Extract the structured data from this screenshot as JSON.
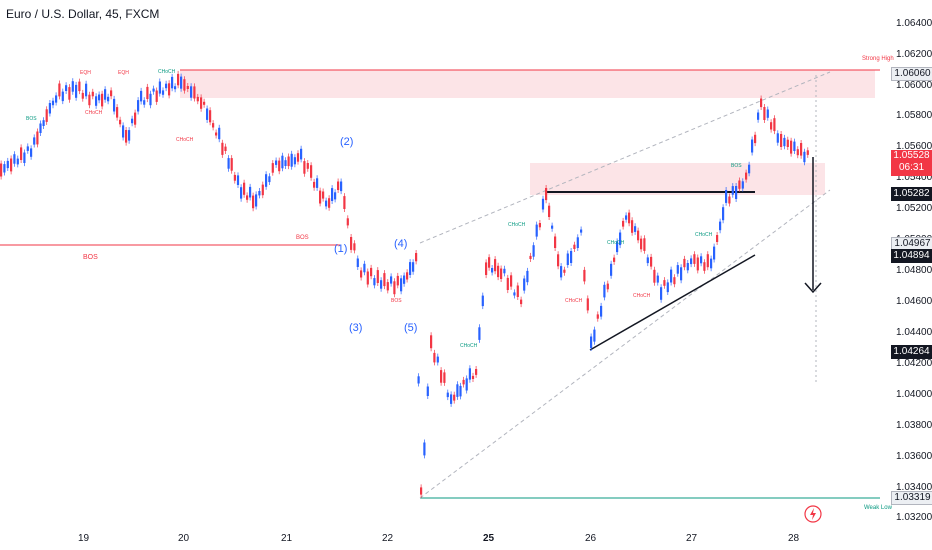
{
  "header": {
    "title": "Euro / U.S. Dollar, 45, FXCM"
  },
  "price_axis": {
    "labels": [
      "1.06400",
      "1.06200",
      "1.06000",
      "1.05800",
      "1.05600",
      "1.05400",
      "1.05200",
      "1.05000",
      "1.04800",
      "1.04600",
      "1.04400",
      "1.04200",
      "1.04000",
      "1.03800",
      "1.03600",
      "1.03400",
      "1.03200"
    ],
    "tags": {
      "strong_high": "1.06060",
      "current_price": "1.05528",
      "countdown": "06:31",
      "level_a": "1.05282",
      "level_b": "1.04967",
      "level_c": "1.04894",
      "level_d": "1.04264",
      "weak_low": "1.03319"
    }
  },
  "time_axis": {
    "labels": [
      "19",
      "20",
      "21",
      "22",
      "25",
      "26",
      "27",
      "28"
    ]
  },
  "annotations": {
    "strong_high": "Strong High",
    "weak_low": "Weak Low",
    "bos": "BOS",
    "eqh": "EQH",
    "choch": "CHoCH",
    "waves": [
      "(1)",
      "(2)",
      "(3)",
      "(4)",
      "(5)"
    ]
  },
  "colors": {
    "up": "#2962ff",
    "down": "#f23645",
    "zone": "#fce4e7",
    "teal": "#089981"
  }
}
